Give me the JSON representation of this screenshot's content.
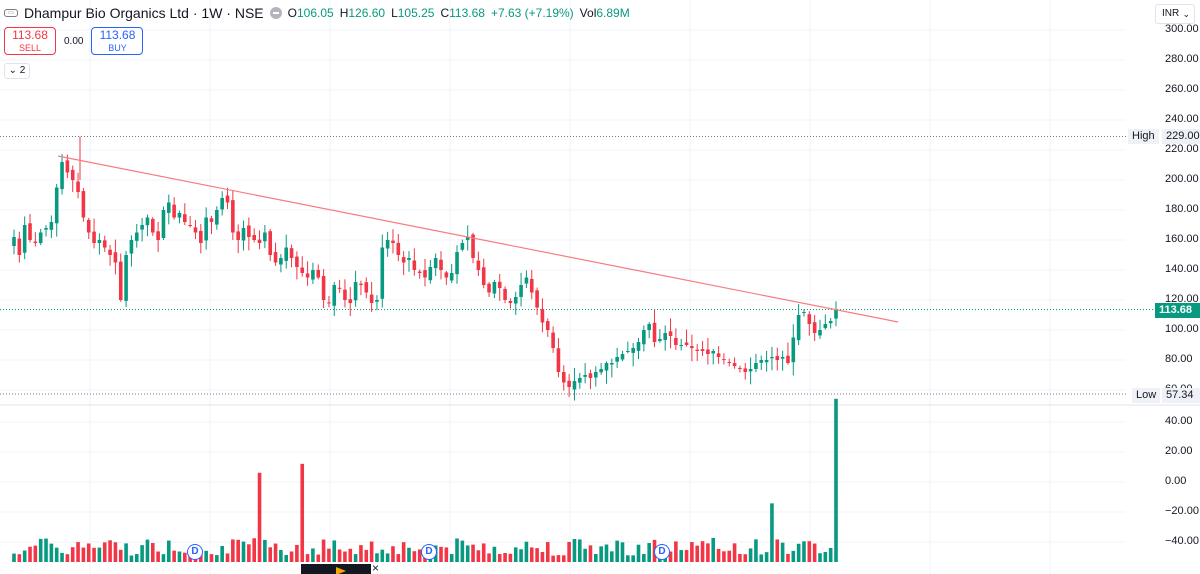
{
  "legend": {
    "symbol": "Dhampur Bio Organics Ltd · 1W · NSE",
    "open_label": "O",
    "open": "106.05",
    "high_label": "H",
    "high": "126.60",
    "low_label": "L",
    "low": "105.25",
    "close_label": "C",
    "close": "113.68",
    "change": "+7.63 (+7.19%)",
    "vol_label": "Vol",
    "vol": "6.89M"
  },
  "trade": {
    "sell_price": "113.68",
    "sell_label": "SELL",
    "spread": "0.00",
    "buy_price": "113.68",
    "buy_label": "BUY"
  },
  "indicator_toggle": "2",
  "currency": "INR",
  "price_axis": {
    "labels": [
      "300.00",
      "280.00",
      "260.00",
      "240.00",
      "220.00",
      "200.00",
      "180.00",
      "160.00",
      "140.00",
      "120.00",
      "100.00",
      "80.00",
      "60.00"
    ],
    "high_label": "High",
    "high_value": "229.00",
    "low_label": "Low",
    "low_value": "57.34",
    "current": "113.68"
  },
  "volume_axis": {
    "labels": [
      "40.00",
      "20.00",
      "0.00",
      "−20.00",
      "−40.00"
    ]
  },
  "dividend_badge": "D",
  "colors": {
    "up": "#089981",
    "down": "#f23645",
    "trendline": "#f77c80",
    "grid": "#f0f3fa"
  },
  "chart_data": {
    "type": "candlestick",
    "title": "Dhampur Bio Organics Ltd · 1W · NSE",
    "ylim": [
      55,
      305
    ],
    "series_note": "weekly OHLC approximated from screenshot",
    "closes": [
      162,
      150,
      170,
      160,
      158,
      165,
      168,
      172,
      195,
      212,
      205,
      200,
      192,
      175,
      165,
      158,
      160,
      155,
      150,
      145,
      120,
      150,
      160,
      165,
      170,
      175,
      165,
      160,
      180,
      185,
      175,
      178,
      172,
      170,
      165,
      158,
      175,
      172,
      180,
      188,
      185,
      165,
      160,
      168,
      162,
      160,
      158,
      165,
      150,
      145,
      148,
      155,
      148,
      142,
      138,
      135,
      140,
      135,
      120,
      118,
      130,
      128,
      120,
      118,
      132,
      130,
      125,
      118,
      120,
      155,
      160,
      158,
      150,
      145,
      148,
      140,
      138,
      135,
      142,
      148,
      140,
      135,
      138,
      152,
      158,
      162,
      148,
      140,
      130,
      125,
      132,
      128,
      120,
      118,
      122,
      130,
      135,
      125,
      115,
      105,
      100,
      88,
      72,
      65,
      62,
      66,
      68,
      70,
      68,
      72,
      74,
      78,
      78,
      82,
      84,
      86,
      88,
      92,
      100,
      104,
      92,
      94,
      98,
      96,
      90,
      90,
      90,
      88,
      86,
      86,
      84,
      86,
      82,
      80,
      78,
      76,
      74,
      72,
      74,
      78,
      80,
      80,
      82,
      80,
      82,
      78,
      95,
      110,
      112,
      104,
      98,
      100,
      104,
      106,
      113.68
    ],
    "highs_of_note": {
      "high": 229.0,
      "low": 57.34
    },
    "volume_scale": [
      -45,
      45
    ],
    "volume_markers": [
      "D",
      "D",
      "D"
    ],
    "trendline": {
      "from": [
        210,
        214
      ],
      "to": [
        1440,
        105
      ]
    }
  }
}
